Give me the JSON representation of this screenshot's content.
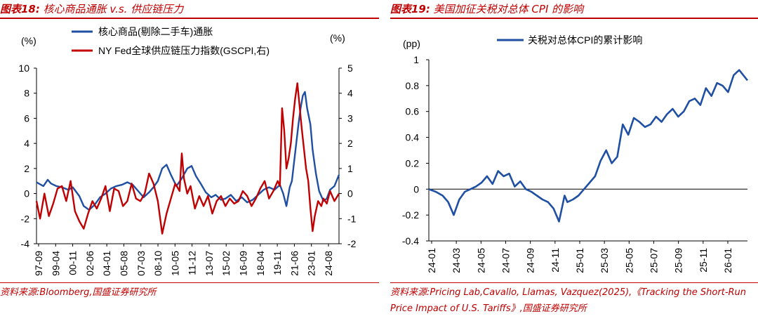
{
  "left": {
    "title_prefix": "图表18:",
    "title": "核心商品通胀 v.s. 供应链压力",
    "source": "资料来源:Bloomberg,国盛证券研究所",
    "unit_left": "(%)",
    "unit_right": "(%)"
  },
  "right": {
    "title_prefix": "图表19:",
    "title": "美国加征关税对总体 CPI 的影响",
    "source": "资料来源:Pricing Lab,Cavallo, Llamas, Vazquez(2025),《Tracking the Short-Run Price Impact of U.S. Tariffs》,国盛证券研究所",
    "unit": "(pp)"
  },
  "colors": {
    "blue": "#1f4fa3",
    "red": "#c00000",
    "accent": "#c00000"
  },
  "chart_data": [
    {
      "type": "line",
      "title": "核心商品通胀 v.s. 供应链压力",
      "x_start": 1997.67,
      "x_end": 2025.42,
      "y_left": {
        "range": [
          -4,
          10
        ],
        "ticks": [
          -4,
          -2,
          0,
          2,
          4,
          6,
          8,
          10
        ]
      },
      "y_right": {
        "range": [
          -2,
          5
        ],
        "ticks": [
          -2,
          -1,
          0,
          1,
          2,
          3,
          4,
          5
        ]
      },
      "x_tick_labels": [
        "97-09",
        "99-04",
        "00-11",
        "02-06",
        "04-01",
        "05-08",
        "07-03",
        "08-10",
        "10-05",
        "11-12",
        "13-07",
        "15-02",
        "16-09",
        "18-04",
        "19-11",
        "21-06",
        "23-01",
        "24-08"
      ],
      "legend_position": "top",
      "series": [
        {
          "name": "核心商品(剔除二手车)通胀",
          "axis": "left",
          "color": "#1f4fa3",
          "x": [
            1997.67,
            1998.3,
            1998.7,
            1999.0,
            1999.5,
            2000.0,
            2000.6,
            2001.0,
            2001.6,
            2002.0,
            2002.5,
            2003.0,
            2003.5,
            2004.0,
            2004.5,
            2005.0,
            2005.5,
            2006.0,
            2006.5,
            2007.0,
            2007.5,
            2008.0,
            2008.4,
            2008.8,
            2009.2,
            2009.6,
            2010.0,
            2010.5,
            2011.0,
            2011.5,
            2011.9,
            2012.3,
            2012.8,
            2013.2,
            2013.7,
            2014.1,
            2014.6,
            2015.0,
            2015.5,
            2016.0,
            2016.5,
            2017.0,
            2017.5,
            2018.0,
            2018.5,
            2019.0,
            2019.5,
            2020.0,
            2020.3,
            2020.6,
            2020.9,
            2021.1,
            2021.3,
            2021.5,
            2021.7,
            2021.9,
            2022.1,
            2022.3,
            2022.5,
            2022.8,
            2023.0,
            2023.3,
            2023.6,
            2024.0,
            2024.3,
            2024.6,
            2025.0,
            2025.42
          ],
          "values": [
            0.9,
            0.6,
            1.1,
            0.8,
            0.6,
            0.5,
            0.3,
            0.5,
            -0.2,
            -1.0,
            -1.3,
            -0.9,
            -0.3,
            0.0,
            0.4,
            0.6,
            0.7,
            0.9,
            0.7,
            0.2,
            -0.3,
            0.1,
            0.5,
            1.0,
            2.0,
            2.3,
            1.5,
            0.6,
            1.2,
            2.0,
            2.2,
            1.4,
            0.7,
            0.1,
            -0.3,
            -0.1,
            -0.5,
            -0.4,
            -0.1,
            -0.6,
            -0.3,
            -0.7,
            -0.5,
            -0.1,
            0.3,
            0.5,
            0.3,
            0.7,
            0.0,
            -1.0,
            0.5,
            1.0,
            2.5,
            4.0,
            5.5,
            6.8,
            7.8,
            8.1,
            6.8,
            5.5,
            3.5,
            1.6,
            0.2,
            -0.6,
            -0.4,
            0.3,
            0.6,
            1.5
          ]
        },
        {
          "name": "NY Fed全球供应链压力指数(GSCPI,右)",
          "axis": "right",
          "color": "#c00000",
          "x": [
            1997.67,
            1998.0,
            1998.4,
            1998.8,
            1999.2,
            1999.6,
            2000.0,
            2000.4,
            2000.8,
            2001.2,
            2001.6,
            2002.0,
            2002.4,
            2002.8,
            2003.2,
            2003.6,
            2004.0,
            2004.4,
            2004.8,
            2005.2,
            2005.6,
            2006.0,
            2006.4,
            2006.8,
            2007.2,
            2007.6,
            2008.0,
            2008.4,
            2008.8,
            2009.2,
            2009.6,
            2010.0,
            2010.4,
            2010.8,
            2011.0,
            2011.2,
            2011.5,
            2011.8,
            2012.2,
            2012.6,
            2013.0,
            2013.4,
            2013.8,
            2014.2,
            2014.6,
            2015.0,
            2015.4,
            2015.8,
            2016.2,
            2016.6,
            2017.0,
            2017.4,
            2017.8,
            2018.2,
            2018.6,
            2019.0,
            2019.4,
            2019.8,
            2020.0,
            2020.2,
            2020.4,
            2020.6,
            2020.8,
            2021.0,
            2021.2,
            2021.4,
            2021.6,
            2021.8,
            2022.0,
            2022.2,
            2022.4,
            2022.6,
            2022.8,
            2023.0,
            2023.2,
            2023.5,
            2023.8,
            2024.0,
            2024.3,
            2024.6,
            2025.0,
            2025.42
          ],
          "values": [
            -0.3,
            -1.0,
            0.0,
            -0.9,
            -0.4,
            0.2,
            0.3,
            -0.3,
            0.5,
            -0.7,
            -1.1,
            -1.4,
            -0.8,
            -0.3,
            -0.6,
            -0.2,
            0.3,
            -0.7,
            0.2,
            0.1,
            -0.5,
            -0.3,
            0.4,
            -0.2,
            -0.3,
            0.0,
            0.8,
            0.4,
            -0.3,
            -1.6,
            -0.8,
            -0.2,
            0.4,
            0.1,
            1.6,
            0.6,
            0.0,
            0.3,
            -0.6,
            -0.1,
            -0.5,
            -0.1,
            -0.8,
            -0.3,
            -0.1,
            -0.5,
            -0.2,
            -0.4,
            -0.3,
            0.1,
            -0.1,
            -0.5,
            -0.2,
            0.2,
            0.5,
            -0.2,
            0.1,
            0.5,
            0.3,
            3.4,
            2.5,
            1.0,
            1.4,
            2.0,
            3.0,
            3.8,
            4.4,
            3.5,
            2.6,
            1.8,
            1.0,
            0.5,
            -0.6,
            -1.5,
            -0.9,
            -0.3,
            -0.5,
            -0.2,
            -0.4,
            0.1,
            -0.3,
            0.0
          ]
        }
      ]
    },
    {
      "type": "line",
      "title": "美国加征关税对总体 CPI 的影响",
      "x_start": 2024.0,
      "x_end": 2026.3,
      "y": {
        "range": [
          -0.4,
          1.0
        ],
        "ticks": [
          -0.4,
          -0.2,
          0,
          0.2,
          0.4,
          0.6,
          0.8,
          1
        ]
      },
      "x_tick_labels": [
        "24-01",
        "24-03",
        "24-05",
        "24-07",
        "24-09",
        "24-11",
        "25-01",
        "25-03",
        "25-05",
        "25-07",
        "25-09",
        "25-11",
        "26-01"
      ],
      "legend_position": "top",
      "series": [
        {
          "name": "关税对总体CPI的累计影响",
          "color": "#1f4fa3",
          "x": [
            2024.0,
            2024.05,
            2024.1,
            2024.14,
            2024.18,
            2024.22,
            2024.26,
            2024.3,
            2024.34,
            2024.38,
            2024.42,
            2024.46,
            2024.5,
            2024.54,
            2024.58,
            2024.62,
            2024.66,
            2024.7,
            2024.74,
            2024.78,
            2024.82,
            2024.86,
            2024.9,
            2024.94,
            2024.98,
            2025.0,
            2025.04,
            2025.08,
            2025.12,
            2025.16,
            2025.2,
            2025.24,
            2025.28,
            2025.32,
            2025.36,
            2025.4,
            2025.44,
            2025.48,
            2025.52,
            2025.56,
            2025.6,
            2025.64,
            2025.68,
            2025.72,
            2025.76,
            2025.8,
            2025.84,
            2025.88,
            2025.92,
            2025.96,
            2026.0,
            2026.04,
            2026.08,
            2026.12,
            2026.16,
            2026.2,
            2026.24,
            2026.3
          ],
          "values": [
            0.0,
            -0.02,
            -0.05,
            -0.1,
            -0.2,
            -0.08,
            -0.02,
            0.0,
            0.02,
            0.05,
            0.1,
            0.04,
            0.14,
            0.1,
            0.12,
            0.02,
            0.06,
            0.0,
            -0.02,
            -0.05,
            -0.08,
            -0.1,
            -0.15,
            -0.25,
            -0.05,
            -0.1,
            -0.08,
            -0.05,
            0.0,
            0.05,
            0.1,
            0.22,
            0.3,
            0.2,
            0.25,
            0.5,
            0.42,
            0.55,
            0.52,
            0.48,
            0.5,
            0.56,
            0.52,
            0.58,
            0.62,
            0.56,
            0.6,
            0.68,
            0.7,
            0.65,
            0.78,
            0.72,
            0.82,
            0.8,
            0.75,
            0.88,
            0.92,
            0.84
          ]
        }
      ]
    }
  ]
}
